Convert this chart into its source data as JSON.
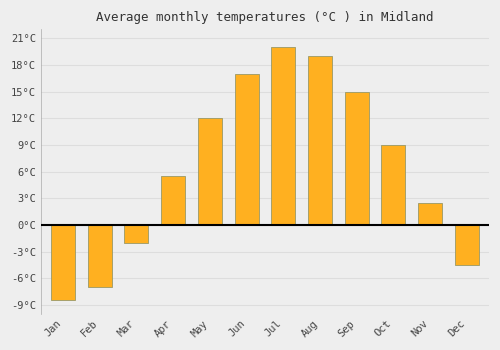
{
  "months": [
    "Jan",
    "Feb",
    "Mar",
    "Apr",
    "May",
    "Jun",
    "Jul",
    "Aug",
    "Sep",
    "Oct",
    "Nov",
    "Dec"
  ],
  "temperatures": [
    -8.5,
    -7.0,
    -2.0,
    5.5,
    12.0,
    17.0,
    20.0,
    19.0,
    15.0,
    9.0,
    2.5,
    -4.5
  ],
  "bar_color_top": "#FFB830",
  "bar_color_bottom": "#FFA000",
  "bar_edge_color": "#888800",
  "title": "Average monthly temperatures (°C ) in Midland",
  "ylim": [
    -10,
    22
  ],
  "yticks": [
    -9,
    -6,
    -3,
    0,
    3,
    6,
    9,
    12,
    15,
    18,
    21
  ],
  "ytick_labels": [
    "-9°C",
    "-6°C",
    "-3°C",
    "0°C",
    "3°C",
    "6°C",
    "9°C",
    "12°C",
    "15°C",
    "18°C",
    "21°C"
  ],
  "background_color": "#eeeeee",
  "plot_bg_color": "#eeeeee",
  "grid_color": "#dddddd",
  "title_fontsize": 9,
  "tick_fontsize": 7.5,
  "bar_width": 0.65
}
